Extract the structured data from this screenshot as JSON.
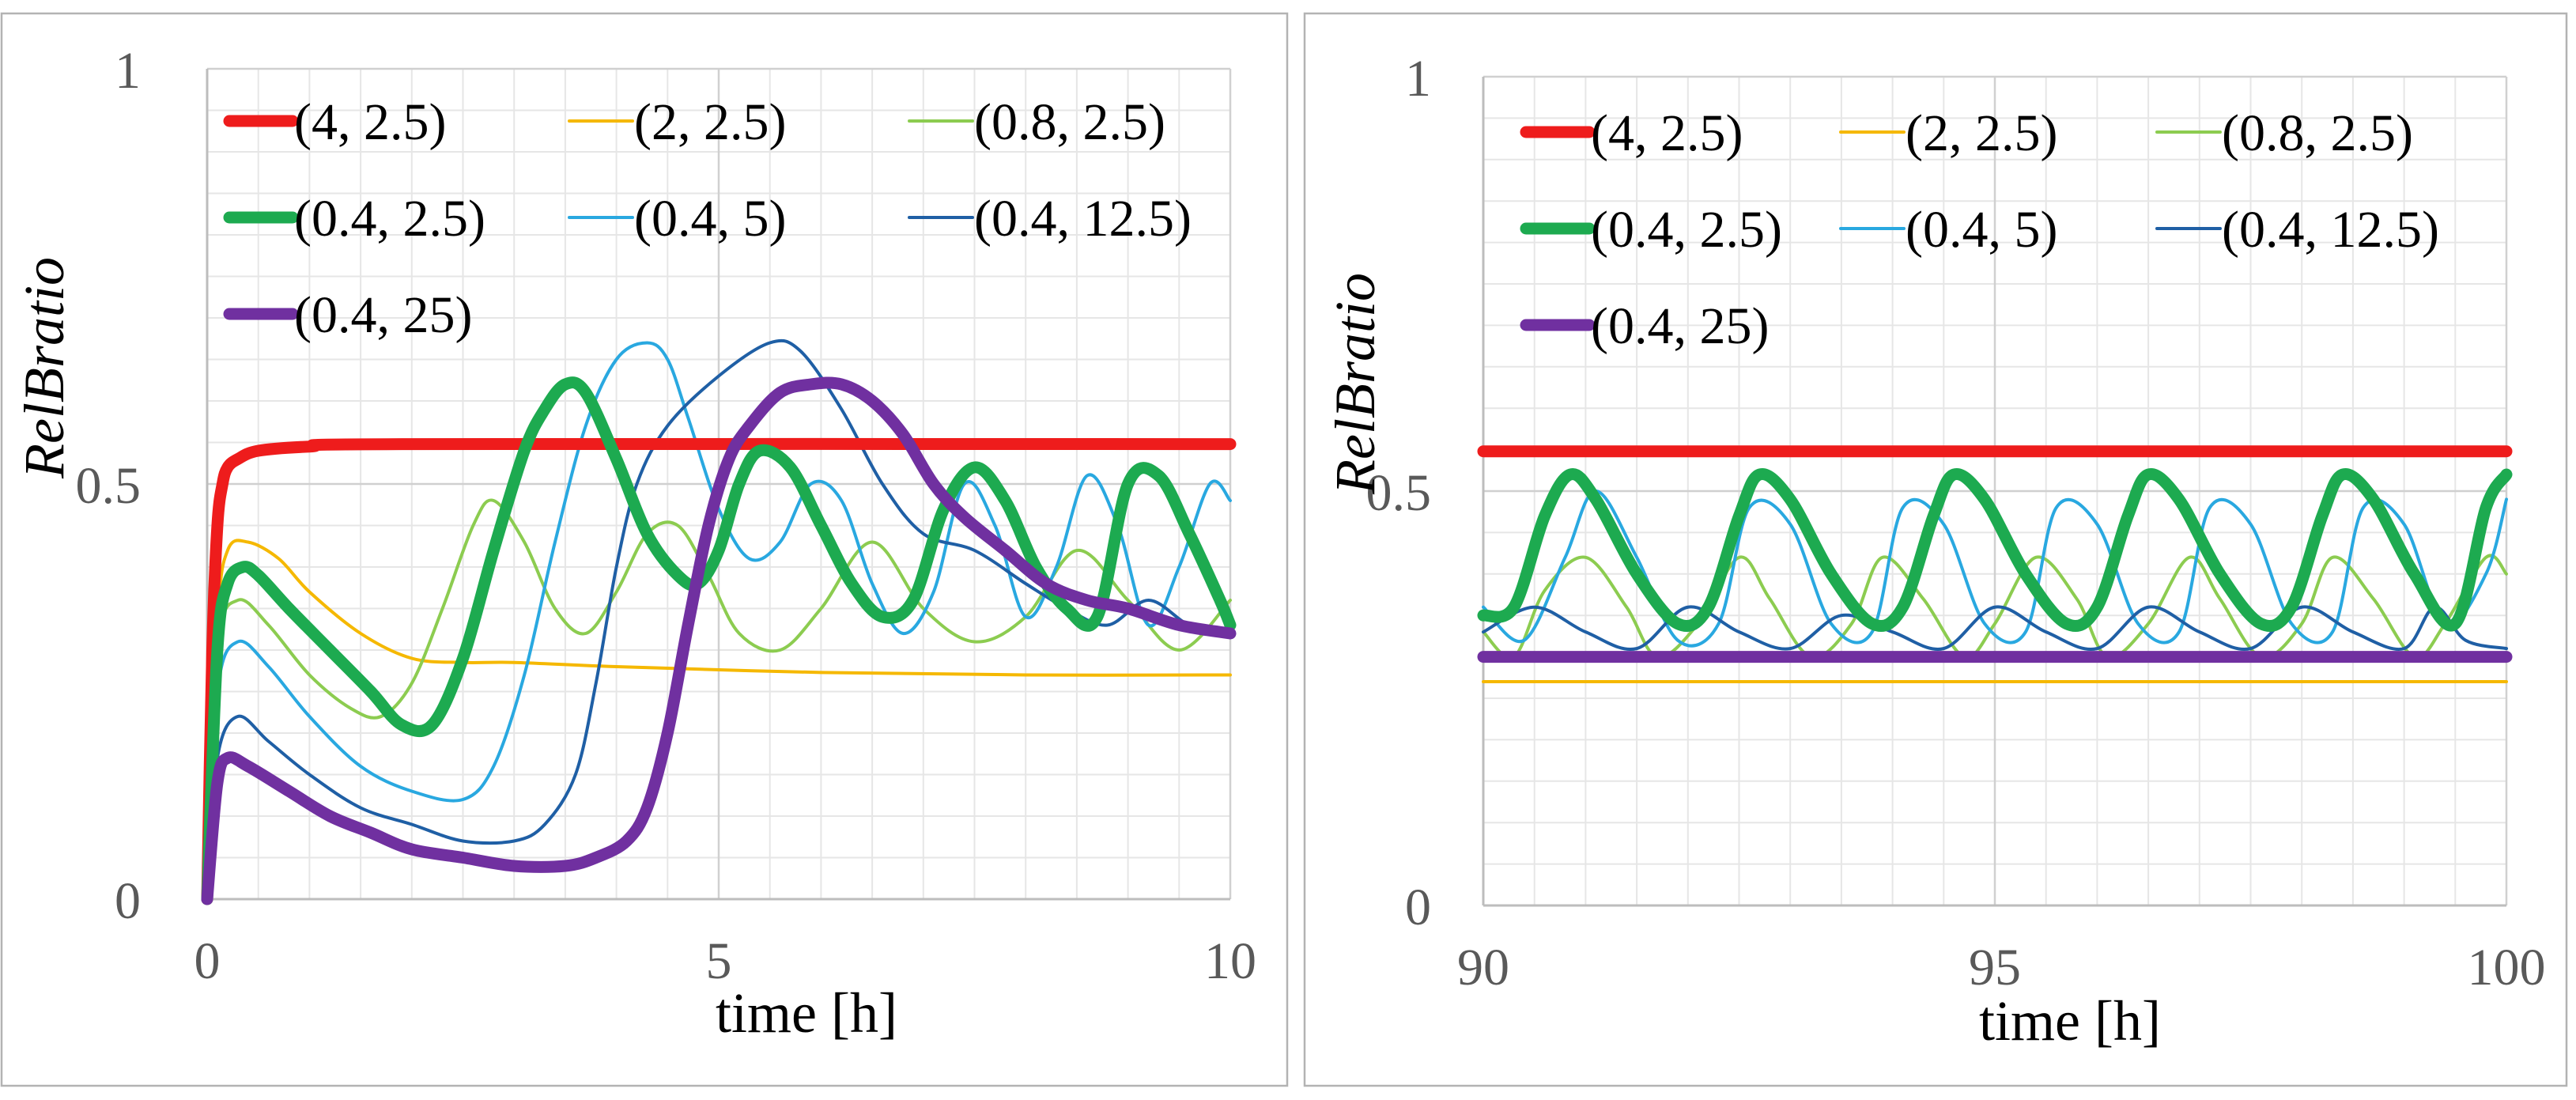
{
  "chart_data": [
    {
      "type": "line",
      "title": "",
      "xlabel": "time [h]",
      "ylabel": "RelBratio",
      "xlim": [
        0,
        10
      ],
      "ylim": [
        0,
        1
      ],
      "xticks": [
        "0",
        "5",
        "10"
      ],
      "yticks": [
        "0",
        "0.5",
        "1"
      ],
      "grid": true,
      "legend_position": "top-left",
      "series": [
        {
          "name": "(4, 2.5)",
          "color": "#ee1c1c",
          "width": "thick",
          "x": [
            0,
            0.05,
            0.1,
            0.15,
            0.2,
            0.3,
            0.5,
            1,
            2,
            10
          ],
          "y": [
            0,
            0.3,
            0.45,
            0.5,
            0.52,
            0.53,
            0.54,
            0.545,
            0.548,
            0.548
          ]
        },
        {
          "name": "(2, 2.5)",
          "color": "#f5b800",
          "width": "thin",
          "x": [
            0,
            0.1,
            0.2,
            0.4,
            0.7,
            1,
            1.5,
            2,
            2.5,
            3,
            4,
            6,
            8,
            10
          ],
          "y": [
            0,
            0.33,
            0.42,
            0.43,
            0.41,
            0.37,
            0.32,
            0.29,
            0.285,
            0.285,
            0.28,
            0.273,
            0.27,
            0.27
          ]
        },
        {
          "name": "(0.8, 2.5)",
          "color": "#8ccc50",
          "width": "thin",
          "x": [
            0,
            0.1,
            0.3,
            0.6,
            1,
            1.4,
            1.7,
            2,
            2.3,
            2.6,
            2.8,
            3.1,
            3.4,
            3.7,
            4,
            4.3,
            4.6,
            4.9,
            5.2,
            5.6,
            6,
            6.5,
            7,
            7.5,
            8,
            8.5,
            9,
            9.5,
            10
          ],
          "y": [
            0,
            0.3,
            0.36,
            0.33,
            0.27,
            0.23,
            0.22,
            0.26,
            0.35,
            0.45,
            0.48,
            0.43,
            0.35,
            0.32,
            0.37,
            0.44,
            0.45,
            0.39,
            0.32,
            0.3,
            0.35,
            0.43,
            0.35,
            0.31,
            0.34,
            0.42,
            0.36,
            0.3,
            0.36
          ]
        },
        {
          "name": "(0.4, 2.5)",
          "color": "#1daa50",
          "width": "thick",
          "x": [
            0,
            0.1,
            0.2,
            0.35,
            0.5,
            0.8,
            1.2,
            1.6,
            1.9,
            2.2,
            2.5,
            2.8,
            3.1,
            3.3,
            3.5,
            3.7,
            4,
            4.3,
            4.6,
            4.8,
            5,
            5.2,
            5.4,
            5.7,
            6,
            6.3,
            6.6,
            6.9,
            7.2,
            7.5,
            7.8,
            8.1,
            8.4,
            8.7,
            9,
            9.3,
            9.6,
            9.9,
            10
          ],
          "y": [
            0,
            0.3,
            0.38,
            0.4,
            0.39,
            0.35,
            0.3,
            0.25,
            0.21,
            0.21,
            0.29,
            0.42,
            0.54,
            0.59,
            0.62,
            0.61,
            0.53,
            0.44,
            0.39,
            0.38,
            0.42,
            0.5,
            0.54,
            0.52,
            0.45,
            0.38,
            0.34,
            0.36,
            0.47,
            0.52,
            0.48,
            0.4,
            0.35,
            0.34,
            0.5,
            0.51,
            0.44,
            0.36,
            0.33
          ]
        },
        {
          "name": "(0.4, 5)",
          "color": "#29a8e0",
          "width": "thin",
          "x": [
            0,
            0.1,
            0.3,
            0.6,
            1,
            1.5,
            2,
            2.5,
            2.8,
            3.1,
            3.4,
            3.7,
            4,
            4.3,
            4.5,
            4.7,
            5,
            5.3,
            5.6,
            5.9,
            6.2,
            6.5,
            6.8,
            7.1,
            7.4,
            7.7,
            8,
            8.3,
            8.6,
            8.9,
            9.2,
            9.5,
            9.8,
            10
          ],
          "y": [
            0,
            0.25,
            0.31,
            0.28,
            0.22,
            0.16,
            0.13,
            0.12,
            0.16,
            0.27,
            0.43,
            0.57,
            0.65,
            0.67,
            0.65,
            0.58,
            0.47,
            0.41,
            0.43,
            0.5,
            0.48,
            0.38,
            0.32,
            0.37,
            0.5,
            0.45,
            0.34,
            0.4,
            0.51,
            0.45,
            0.33,
            0.4,
            0.5,
            0.48
          ]
        },
        {
          "name": "(0.4, 12.5)",
          "color": "#1f5fa5",
          "width": "thin",
          "x": [
            0,
            0.1,
            0.3,
            0.6,
            1,
            1.5,
            2,
            2.5,
            3,
            3.3,
            3.6,
            3.8,
            4,
            4.2,
            4.5,
            5,
            5.5,
            5.8,
            6.2,
            6.6,
            7,
            7.5,
            8,
            8.4,
            8.8,
            9.2,
            9.6,
            10
          ],
          "y": [
            0,
            0.17,
            0.22,
            0.19,
            0.15,
            0.11,
            0.09,
            0.07,
            0.07,
            0.09,
            0.15,
            0.26,
            0.4,
            0.5,
            0.57,
            0.63,
            0.67,
            0.66,
            0.59,
            0.5,
            0.44,
            0.42,
            0.38,
            0.35,
            0.33,
            0.36,
            0.33,
            0.32
          ]
        },
        {
          "name": "(0.4, 25)",
          "color": "#7030a0",
          "width": "thick",
          "x": [
            0,
            0.1,
            0.2,
            0.4,
            0.8,
            1.2,
            1.6,
            2,
            2.5,
            3,
            3.5,
            3.8,
            4.1,
            4.3,
            4.5,
            4.7,
            4.9,
            5.1,
            5.3,
            5.6,
            5.9,
            6.2,
            6.5,
            6.8,
            7.1,
            7.4,
            7.8,
            8.2,
            8.6,
            9,
            9.5,
            10
          ],
          "y": [
            0,
            0.14,
            0.17,
            0.16,
            0.13,
            0.1,
            0.08,
            0.06,
            0.05,
            0.04,
            0.04,
            0.05,
            0.07,
            0.11,
            0.2,
            0.33,
            0.45,
            0.53,
            0.57,
            0.61,
            0.62,
            0.62,
            0.6,
            0.56,
            0.5,
            0.46,
            0.42,
            0.38,
            0.36,
            0.35,
            0.33,
            0.32
          ]
        }
      ]
    },
    {
      "type": "line",
      "title": "",
      "xlabel": "time [h]",
      "ylabel": "RelBratio",
      "xlim": [
        90,
        100
      ],
      "ylim": [
        0,
        1
      ],
      "xticks": [
        "90",
        "95",
        "100"
      ],
      "yticks": [
        "0",
        "0.5",
        "1"
      ],
      "grid": true,
      "legend_position": "top-left",
      "series": [
        {
          "name": "(4, 2.5)",
          "color": "#ee1c1c",
          "width": "thick",
          "x": [
            90,
            100
          ],
          "y": [
            0.548,
            0.548
          ]
        },
        {
          "name": "(2, 2.5)",
          "color": "#f5b800",
          "width": "thin",
          "x": [
            90,
            100
          ],
          "y": [
            0.27,
            0.27
          ]
        },
        {
          "name": "(0.8, 2.5)",
          "color": "#8ccc50",
          "width": "thin",
          "x": [
            90,
            90.3,
            90.6,
            91,
            91.4,
            91.7,
            92.1,
            92.5,
            92.8,
            93.2,
            93.6,
            93.9,
            94.3,
            94.7,
            95,
            95.4,
            95.8,
            96.1,
            96.5,
            96.9,
            97.2,
            97.6,
            98,
            98.3,
            98.7,
            99.1,
            99.4,
            99.8,
            100
          ],
          "y": [
            0.33,
            0.3,
            0.38,
            0.42,
            0.36,
            0.3,
            0.34,
            0.42,
            0.37,
            0.3,
            0.34,
            0.42,
            0.37,
            0.3,
            0.34,
            0.42,
            0.37,
            0.3,
            0.34,
            0.42,
            0.37,
            0.3,
            0.34,
            0.42,
            0.37,
            0.3,
            0.34,
            0.42,
            0.4
          ]
        },
        {
          "name": "(0.4, 2.5)",
          "color": "#1daa50",
          "width": "thick",
          "x": [
            90,
            90.3,
            90.6,
            90.85,
            91.1,
            91.5,
            91.9,
            92.2,
            92.5,
            92.7,
            93,
            93.4,
            93.8,
            94.1,
            94.4,
            94.6,
            94.9,
            95.3,
            95.7,
            96,
            96.3,
            96.5,
            96.8,
            97.2,
            97.6,
            97.9,
            98.2,
            98.4,
            98.7,
            99.1,
            99.5,
            99.8,
            100
          ],
          "y": [
            0.35,
            0.36,
            0.47,
            0.52,
            0.49,
            0.4,
            0.34,
            0.36,
            0.47,
            0.52,
            0.49,
            0.4,
            0.34,
            0.36,
            0.47,
            0.52,
            0.49,
            0.4,
            0.34,
            0.36,
            0.47,
            0.52,
            0.49,
            0.4,
            0.34,
            0.36,
            0.47,
            0.52,
            0.49,
            0.4,
            0.34,
            0.48,
            0.52
          ]
        },
        {
          "name": "(0.4, 5)",
          "color": "#29a8e0",
          "width": "thin",
          "x": [
            90,
            90.4,
            90.8,
            91.1,
            91.5,
            91.9,
            92.3,
            92.6,
            93,
            93.4,
            93.8,
            94.1,
            94.5,
            94.9,
            95.3,
            95.6,
            96,
            96.4,
            96.8,
            97.1,
            97.5,
            97.9,
            98.3,
            98.6,
            99,
            99.4,
            99.8,
            100
          ],
          "y": [
            0.36,
            0.32,
            0.42,
            0.5,
            0.42,
            0.32,
            0.34,
            0.48,
            0.46,
            0.34,
            0.33,
            0.48,
            0.46,
            0.34,
            0.33,
            0.48,
            0.46,
            0.34,
            0.33,
            0.48,
            0.46,
            0.34,
            0.33,
            0.48,
            0.46,
            0.34,
            0.4,
            0.49
          ]
        },
        {
          "name": "(0.4, 12.5)",
          "color": "#1f5fa5",
          "width": "thin",
          "x": [
            90,
            90.5,
            91,
            91.5,
            92,
            92.5,
            93,
            93.5,
            94,
            94.5,
            95,
            95.5,
            96,
            96.5,
            97,
            97.5,
            98,
            98.5,
            99,
            99.3,
            99.6,
            100
          ],
          "y": [
            0.33,
            0.36,
            0.33,
            0.31,
            0.36,
            0.33,
            0.31,
            0.35,
            0.33,
            0.31,
            0.36,
            0.33,
            0.31,
            0.36,
            0.33,
            0.31,
            0.36,
            0.33,
            0.31,
            0.36,
            0.32,
            0.31
          ]
        },
        {
          "name": "(0.4, 25)",
          "color": "#7030a0",
          "width": "thick",
          "x": [
            90,
            100
          ],
          "y": [
            0.3,
            0.3
          ]
        }
      ]
    }
  ]
}
